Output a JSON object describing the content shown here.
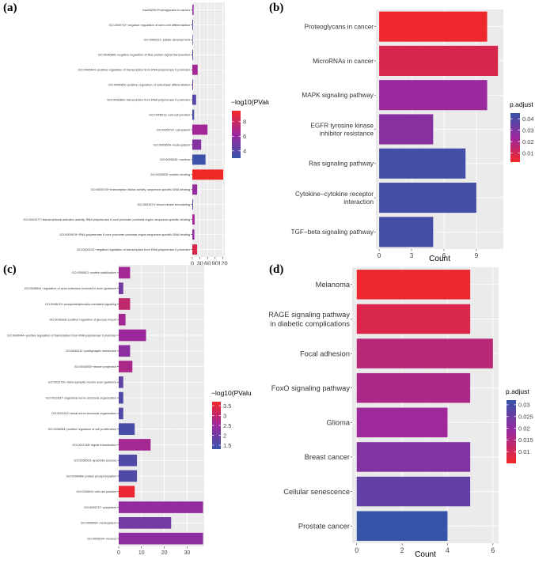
{
  "panels": {
    "a": {
      "letter": "(a)"
    },
    "b": {
      "letter": "(b)"
    },
    "c": {
      "letter": "(c)"
    },
    "d": {
      "letter": "(d)"
    }
  },
  "chart_data": [
    {
      "id": "a",
      "type": "bar",
      "orientation": "horizontal",
      "categories": [
        "hsa05205:Proteoglycans in cancer",
        "GO:2000737~negative regulation of stem cell differentiation",
        "GO:0060021~palate development",
        "GO:0046580~negative regulation of Ras protein signal transduction",
        "GO:0045944~positive regulation of transcription from RNA polymerase II promoter",
        "GO:0045869~positive regulation of osteoblast differentiation",
        "GO:0006366~transcription from RNA polymerase II promoter",
        "GO:0005911~cell-cell junction",
        "GO:0005737~cytoplasm",
        "GO:0005654~nucleoplasm",
        "GO:0005634~nucleus",
        "GO:0005515~protein binding",
        "GO:0003700~transcription factor activity, sequence-specific DNA binding",
        "GO:0001974~blood vessel remodeling",
        "GO:0001077~transcriptional activator activity, RNA polymerase II core promoter proximal region sequence-specific binding",
        "GO:0000978~RNA polymerase II core promoter proximal region sequence-specific DNA binding",
        "GO:0000122~negative regulation of transcription from RNA polymerase II promoter"
      ],
      "values": [
        5,
        3,
        2,
        3,
        21,
        3,
        15,
        7,
        60,
        35,
        52,
        122,
        19,
        3,
        9,
        8,
        19
      ],
      "color_values": [
        6.0,
        4.0,
        3.8,
        4.2,
        6.5,
        4.6,
        4.0,
        3.6,
        6.5,
        5.5,
        3.2,
        9.5,
        6.0,
        3.7,
        6.5,
        6.0,
        8.5
      ],
      "xticks": [
        0,
        30,
        60,
        90,
        120
      ],
      "xlim": [
        0,
        128
      ],
      "legend": {
        "title": "−log10(PValue)",
        "ticks": [
          8,
          6,
          4
        ],
        "range": [
          3,
          9.5
        ],
        "placement": "right"
      },
      "grid": true
    },
    {
      "id": "b",
      "type": "bar",
      "orientation": "horizontal",
      "categories": [
        "Proteoglycans in cancer",
        "MicroRNAs in cancer",
        "MAPK signaling pathway",
        "EGFR tyrosine kinase\ninhibitor resistance",
        "Ras signaling pathway",
        "Cytokine−cytokine receptor\ninteraction",
        "TGF−beta signaling pathway"
      ],
      "values": [
        10,
        11,
        10,
        5,
        8,
        9,
        5
      ],
      "color_values": [
        0.003,
        0.009,
        0.024,
        0.028,
        0.042,
        0.042,
        0.042
      ],
      "xticks": [
        0,
        3,
        6,
        9
      ],
      "xlim": [
        -0.3,
        11.5
      ],
      "xlabel": "Count",
      "legend": {
        "title": "p.adjust",
        "ticks": [
          0.01,
          0.02,
          0.03,
          0.04
        ],
        "range": [
          0.002,
          0.045
        ],
        "placement": "right"
      },
      "grid": true
    },
    {
      "id": "c",
      "type": "bar",
      "orientation": "horizontal",
      "categories": [
        "GO:0050821~protein stabilization",
        "GO:0048841~regulation of axon extension involved in axon guidance",
        "GO:0048015~phosphatidylinositol-mediated signaling",
        "GO:0046326~positive regulation of glucose import",
        "GO:0045944~positive regulation of transcription from RNA polymerase II promoter",
        "GO:0045211~postsynaptic membrane",
        "GO:0043005~neuron projection",
        "GO:0021730~trans-synaptic neuron axon guidance",
        "GO:0021637~trigeminal nerve structural organization",
        "GO:0021612~facial nerve structural organization",
        "GO:0008284~positive regulation of cell proliferation",
        "GO:0007165~signal transduction",
        "GO:0006915~apoptotic process",
        "GO:0006468~protein phosphorylation",
        "GO:0005911~cell-cell junction",
        "GO:0005737~cytoplasm",
        "GO:0005654~nucleoplasm",
        "GO:0005634~nucleus"
      ],
      "values": [
        5,
        2,
        5,
        3,
        12,
        5,
        6,
        2,
        2,
        2,
        7,
        14,
        8,
        8,
        7,
        37,
        23,
        37
      ],
      "color_values": [
        2.6,
        2.0,
        3.0,
        2.6,
        2.5,
        2.3,
        2.7,
        1.8,
        1.6,
        1.6,
        1.5,
        2.6,
        1.6,
        1.6,
        3.6,
        2.4,
        2.0,
        2.3
      ],
      "xticks": [
        0,
        10,
        20,
        30
      ],
      "xlim": [
        0,
        37.5
      ],
      "legend": {
        "title": "−log10(PValu",
        "ticks": [
          3.5,
          3.0,
          2.5,
          2.0,
          1.5
        ],
        "range": [
          1.3,
          3.7
        ],
        "placement": "right"
      },
      "grid": true
    },
    {
      "id": "d",
      "type": "bar",
      "orientation": "horizontal",
      "categories": [
        "Melanoma",
        "AGE−RAGE signaling pathway\nin diabetic complications",
        "Focal adhesion",
        "FoxO signaling pathway",
        "Glioma",
        "Breast cancer",
        "Cellular senescence",
        "Prostate cancer"
      ],
      "values": [
        5,
        5,
        6,
        5,
        4,
        5,
        5,
        4
      ],
      "color_values": [
        0.006,
        0.009,
        0.014,
        0.016,
        0.018,
        0.022,
        0.026,
        0.032
      ],
      "xticks": [
        0,
        2,
        4,
        6
      ],
      "xlim": [
        -0.2,
        6.25
      ],
      "xlabel": "Count",
      "legend": {
        "title": "p.adjust",
        "ticks": [
          0.01,
          0.015,
          0.02,
          0.025,
          0.03
        ],
        "range": [
          0.005,
          0.032
        ],
        "placement": "right"
      },
      "grid": true
    }
  ]
}
